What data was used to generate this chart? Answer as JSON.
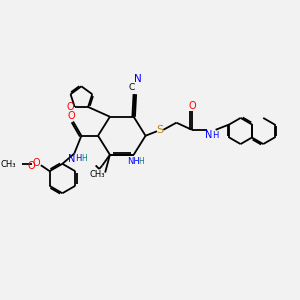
{
  "bg_color": "#f2f2f2",
  "figsize": [
    3.0,
    3.0
  ],
  "dpi": 100,
  "xlim": [
    0,
    12
  ],
  "ylim": [
    0,
    10
  ]
}
